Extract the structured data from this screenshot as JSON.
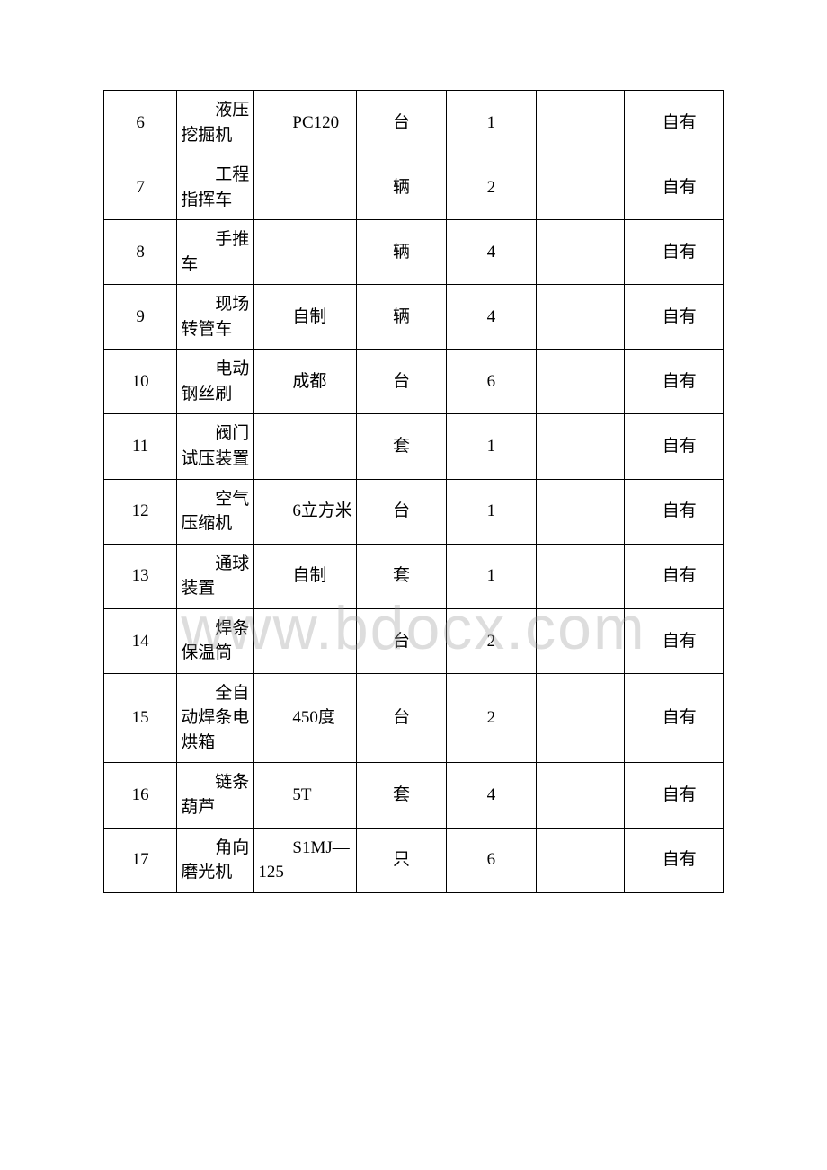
{
  "watermark": "www.bdocx.com",
  "table": {
    "type": "table",
    "background_color": "#ffffff",
    "border_color": "#000000",
    "font_family": "SimSun",
    "body_fontsize": 19,
    "columns": [
      {
        "key": "index",
        "width_pct": 11.8,
        "align": "center"
      },
      {
        "key": "name",
        "width_pct": 12.5,
        "align": "left",
        "indent_em": 2
      },
      {
        "key": "spec",
        "width_pct": 16.5,
        "align": "left",
        "indent_em": 2
      },
      {
        "key": "unit",
        "width_pct": 14.5,
        "align": "center"
      },
      {
        "key": "qty",
        "width_pct": 14.5,
        "align": "center"
      },
      {
        "key": "blank",
        "width_pct": 14.2,
        "align": "left"
      },
      {
        "key": "own",
        "width_pct": 16.0,
        "align": "left",
        "indent_em": 2
      }
    ],
    "rows": [
      {
        "index": "6",
        "name": "液压挖掘机",
        "spec": "PC120",
        "unit": "台",
        "qty": "1",
        "blank": "",
        "own": "自有"
      },
      {
        "index": "7",
        "name": "工程指挥车",
        "spec": "",
        "unit": "辆",
        "qty": "2",
        "blank": "",
        "own": "自有"
      },
      {
        "index": "8",
        "name": "手推车",
        "spec": "",
        "unit": "辆",
        "qty": "4",
        "blank": "",
        "own": "自有"
      },
      {
        "index": "9",
        "name": "现场转管车",
        "spec": "自制",
        "unit": "辆",
        "qty": "4",
        "blank": "",
        "own": "自有"
      },
      {
        "index": "10",
        "name": "电动钢丝刷",
        "spec": "成都",
        "unit": "台",
        "qty": "6",
        "blank": "",
        "own": "自有"
      },
      {
        "index": "11",
        "name": "阀门试压装置",
        "spec": "",
        "unit": "套",
        "qty": "1",
        "blank": "",
        "own": "自有"
      },
      {
        "index": "12",
        "name": "空气压缩机",
        "spec": "6立方米",
        "unit": "台",
        "qty": "1",
        "blank": "",
        "own": "自有"
      },
      {
        "index": "13",
        "name": "通球装置",
        "spec": "自制",
        "unit": "套",
        "qty": "1",
        "blank": "",
        "own": "自有"
      },
      {
        "index": "14",
        "name": "焊条保温筒",
        "spec": "",
        "unit": "台",
        "qty": "2",
        "blank": "",
        "own": "自有"
      },
      {
        "index": "15",
        "name": "全自动焊条电烘箱",
        "spec": "450度",
        "unit": "台",
        "qty": "2",
        "blank": "",
        "own": "自有"
      },
      {
        "index": "16",
        "name": "链条葫芦",
        "spec": "5T",
        "unit": "套",
        "qty": "4",
        "blank": "",
        "own": "自有"
      },
      {
        "index": "17",
        "name": "角向磨光机",
        "spec": "S1MJ—125",
        "unit": "只",
        "qty": "6",
        "blank": "",
        "own": "自有"
      }
    ]
  }
}
